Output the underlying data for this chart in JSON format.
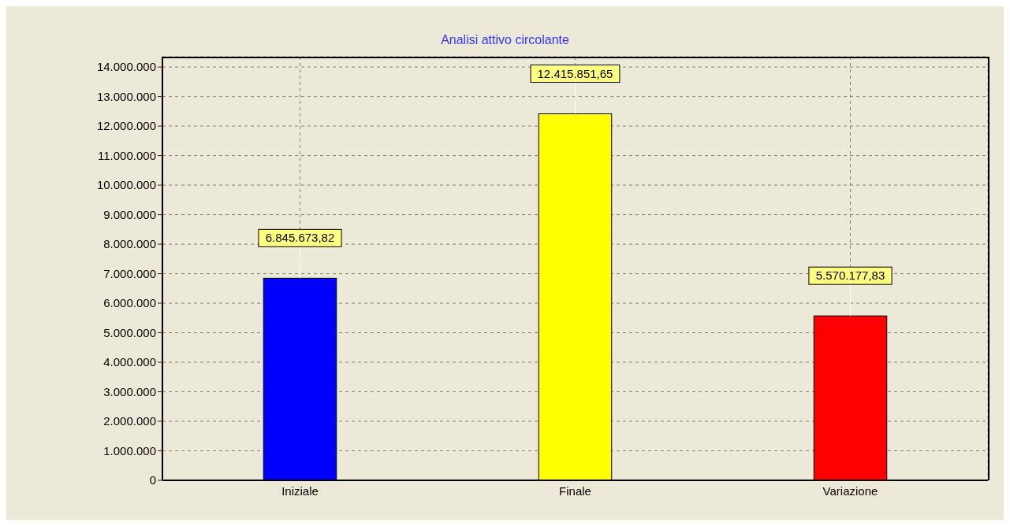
{
  "chart_data": {
    "type": "bar",
    "title": "Analisi attivo circolante",
    "categories": [
      "Iniziale",
      "Finale",
      "Variazione"
    ],
    "values": [
      6845673.82,
      12415851.65,
      5570177.83
    ],
    "colors": [
      "#0000ff",
      "#ffff00",
      "#ff0000"
    ],
    "value_labels": [
      "6.845.673,82",
      "12.415.851,65",
      "5.570.177,83"
    ],
    "ylim": [
      0,
      14350000
    ],
    "yticks": [
      0,
      {
        "value": 1000000,
        "label": "1.000.000"
      },
      {
        "value": 2000000,
        "label": "2.000.000"
      },
      {
        "value": 3000000,
        "label": "3.000.000"
      },
      {
        "value": 4000000,
        "label": "4.000.000"
      },
      {
        "value": 5000000,
        "label": "5.000.000"
      },
      {
        "value": 6000000,
        "label": "6.000.000"
      },
      {
        "value": 7000000,
        "label": "7.000.000"
      },
      {
        "value": 8000000,
        "label": "8.000.000"
      },
      {
        "value": 9000000,
        "label": "9.000.000"
      },
      {
        "value": 10000000,
        "label": "10.000.000"
      },
      {
        "value": 11000000,
        "label": "11.000.000"
      },
      {
        "value": 12000000,
        "label": "12.000.000"
      },
      {
        "value": 13000000,
        "label": "13.000.000"
      },
      {
        "value": 14000000,
        "label": "14.000.000"
      }
    ],
    "grid": true,
    "legend": false
  }
}
